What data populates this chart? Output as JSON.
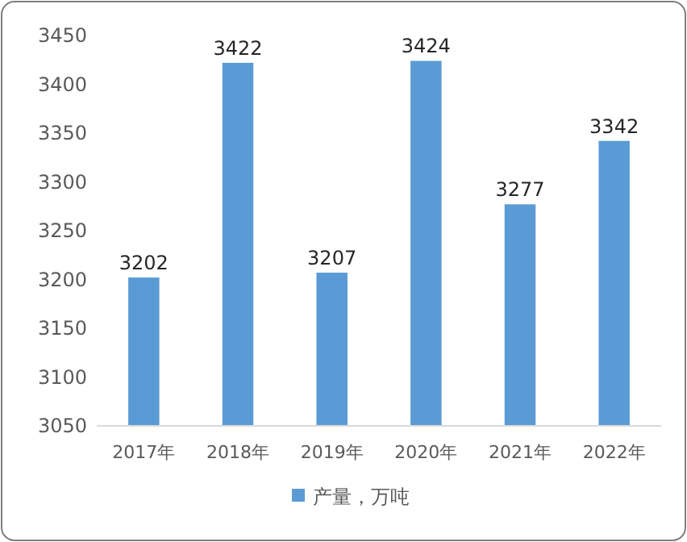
{
  "chart_data": {
    "type": "bar",
    "categories": [
      "2017年",
      "2018年",
      "2019年",
      "2020年",
      "2021年",
      "2022年"
    ],
    "series": [
      {
        "name": "产量，万吨",
        "color": "#5b9bd5",
        "values": [
          3202,
          3422,
          3207,
          3424,
          3277,
          3342
        ]
      }
    ],
    "ylim": [
      3050,
      3450
    ],
    "yticks": [
      3050,
      3100,
      3150,
      3200,
      3250,
      3300,
      3350,
      3400,
      3450
    ],
    "data_labels": true,
    "legend": "bottom",
    "grid": false
  }
}
